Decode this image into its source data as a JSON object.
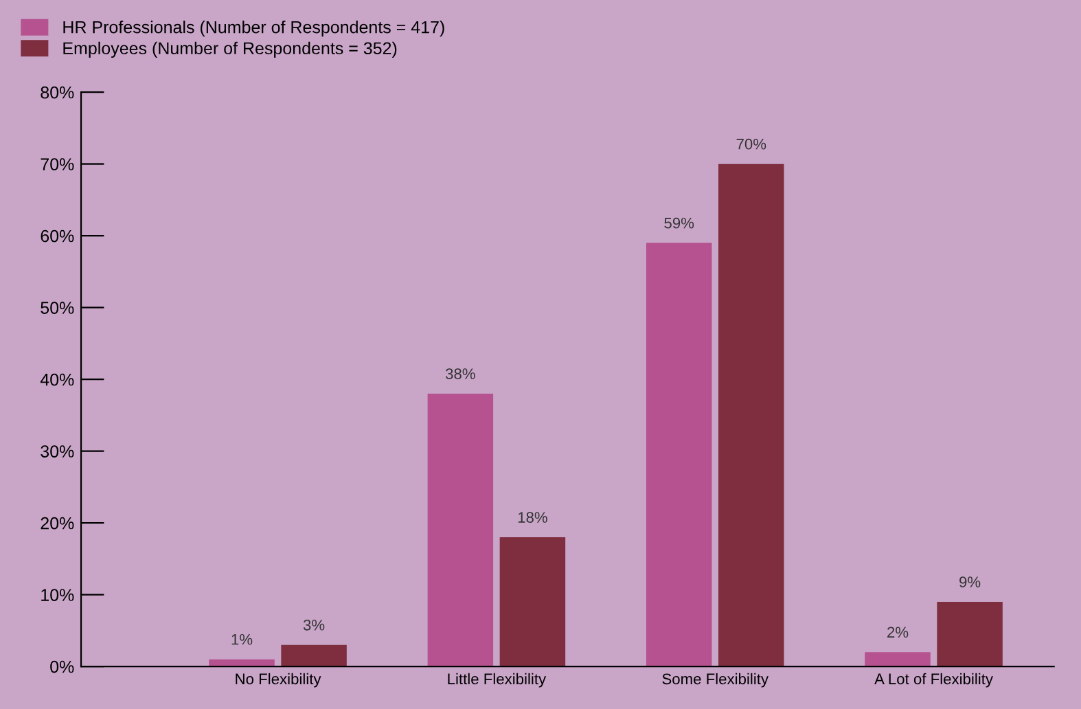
{
  "chart_data": {
    "type": "bar",
    "categories": [
      "No Flexibility",
      "Little Flexibility",
      "Some Flexibility",
      "A Lot of Flexibility"
    ],
    "series": [
      {
        "name": "HR Professionals (Number of Respondents = 417)",
        "color": "#b5528f",
        "values": [
          1,
          38,
          59,
          2
        ],
        "value_labels": [
          "1%",
          "38%",
          "59%",
          "2%"
        ]
      },
      {
        "name": "Employees (Number of Respondents = 352)",
        "color": "#7e2e3e",
        "values": [
          3,
          18,
          70,
          9
        ],
        "value_labels": [
          "3%",
          "18%",
          "70%",
          "9%"
        ]
      }
    ],
    "ylim": [
      0,
      80
    ],
    "yticks": [
      {
        "value": 0,
        "label": "0%"
      },
      {
        "value": 10,
        "label": "10%"
      },
      {
        "value": 20,
        "label": "20%"
      },
      {
        "value": 30,
        "label": "30%"
      },
      {
        "value": 40,
        "label": "40%"
      },
      {
        "value": 50,
        "label": "50%"
      },
      {
        "value": 60,
        "label": "60%"
      },
      {
        "value": 70,
        "label": "70%"
      },
      {
        "value": 80,
        "label": "80%"
      }
    ],
    "grid": false,
    "legend": "top left"
  }
}
